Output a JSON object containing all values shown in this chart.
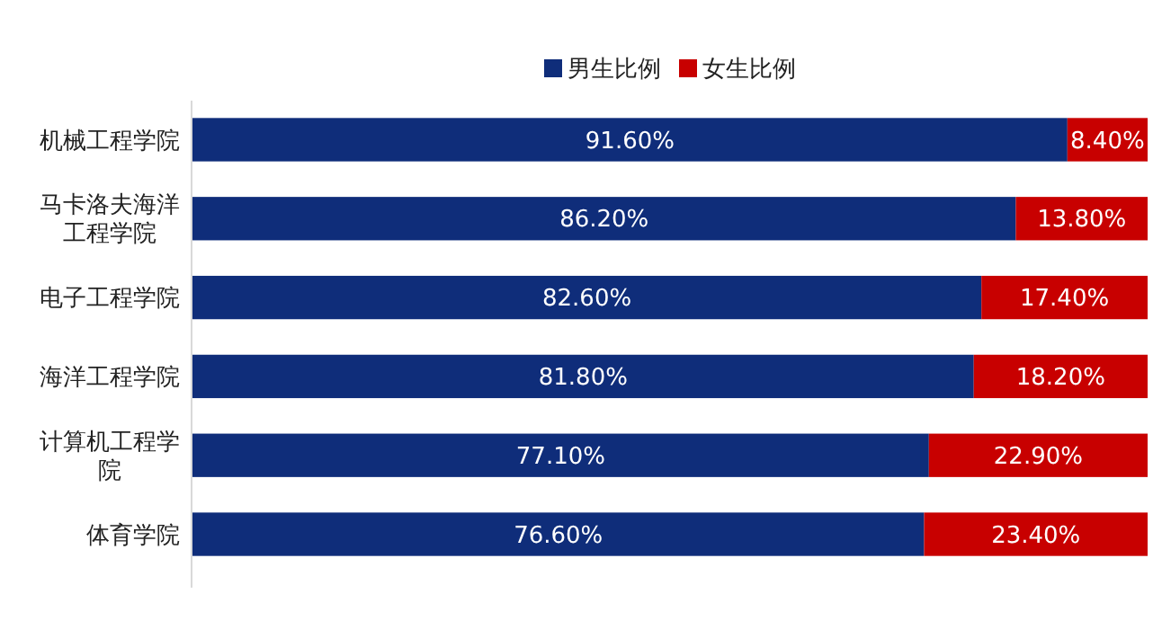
{
  "chart_data": {
    "type": "bar",
    "orientation": "horizontal",
    "stacked": true,
    "categories": [
      "机械工程学院",
      "马卡洛夫海洋工程学院",
      "电子工程学院",
      "海洋工程学院",
      "计算机工程学院",
      "体育学院"
    ],
    "series": [
      {
        "name": "男生比例",
        "color": "#0f2d7a",
        "values": [
          91.6,
          86.2,
          82.6,
          81.8,
          77.1,
          76.6
        ],
        "value_labels": [
          "91.60%",
          "86.20%",
          "82.60%",
          "81.80%",
          "77.10%",
          "76.60%"
        ]
      },
      {
        "name": "女生比例",
        "color": "#c80000",
        "values": [
          8.4,
          13.8,
          17.4,
          18.2,
          22.9,
          23.4
        ],
        "value_labels": [
          "8.40%",
          "13.80%",
          "17.40%",
          "18.20%",
          "22.90%",
          "23.40%"
        ]
      }
    ],
    "xlim": [
      0,
      100
    ],
    "tick_labels": "y",
    "legend": "top"
  }
}
